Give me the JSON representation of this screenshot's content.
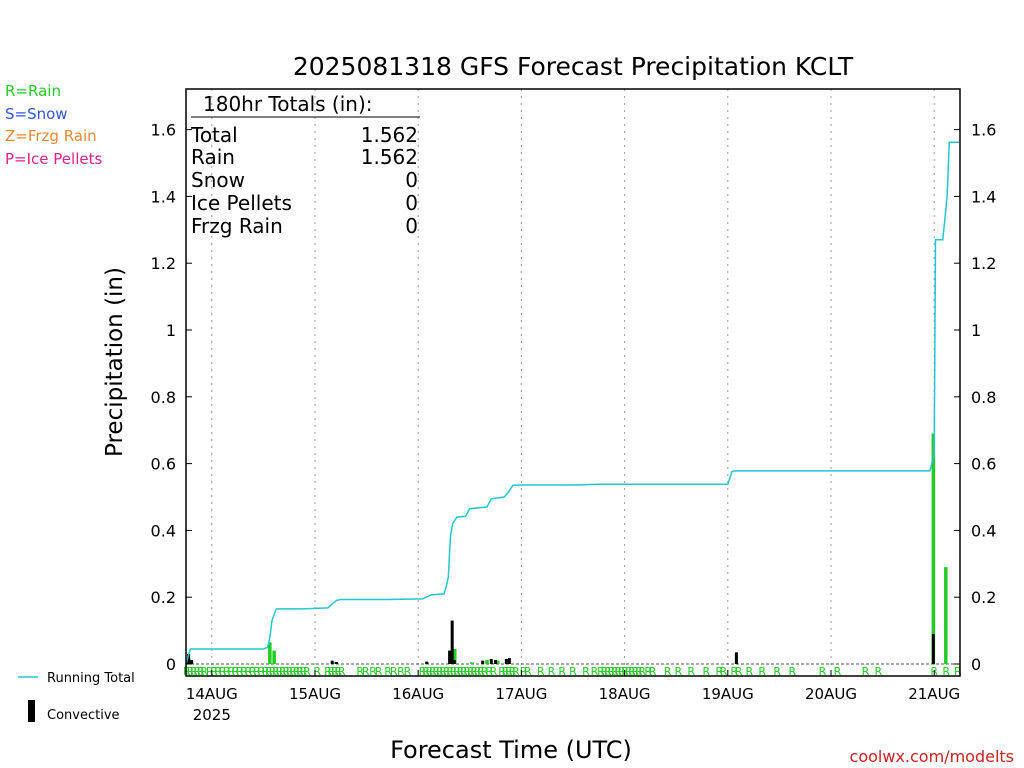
{
  "colors": {
    "rain": "#22cc22",
    "snow": "#3355dd",
    "frzg_rain": "#ee8833",
    "ice_pellets": "#dd2288",
    "running_total": "#22c8d0",
    "convective": "#000000",
    "site_link": "#cc2222"
  },
  "legend_left": {
    "rain": "R=Rain",
    "snow": "S=Snow",
    "frzg_rain": "Z=Frzg Rain",
    "ice_pellets": "P=Ice Pellets"
  },
  "legend_bottom": {
    "running_total": "Running Total",
    "convective": "Convective"
  },
  "site_link": "coolwx.com/modelts",
  "totals": {
    "header": "180hr Totals (in):",
    "rows": [
      {
        "label": "Total",
        "value": "1.562"
      },
      {
        "label": "Rain",
        "value": "1.562"
      },
      {
        "label": "Snow",
        "value": "0"
      },
      {
        "label": "Ice Pellets",
        "value": "0"
      },
      {
        "label": "Frzg Rain",
        "value": "0"
      }
    ]
  },
  "chart_data": {
    "type": "line",
    "title": "2025081318 GFS Forecast Precipitation KCLT",
    "xlabel": "Forecast Time (UTC)",
    "ylabel": "Precipitation (in)",
    "x_unit": "forecast hour",
    "xlim": [
      0,
      180
    ],
    "ylim": [
      0,
      1.7
    ],
    "yticks": [
      0,
      0.2,
      0.4,
      0.6,
      0.8,
      1,
      1.2,
      1.4,
      1.6
    ],
    "ytick_labels": [
      "0",
      "0.2",
      "0.4",
      "0.6",
      "0.8",
      "1",
      "1.2",
      "1.4",
      "1.6"
    ],
    "xticks": [
      {
        "hour": 6,
        "label": "14AUG"
      },
      {
        "hour": 30,
        "label": "15AUG"
      },
      {
        "hour": 54,
        "label": "16AUG"
      },
      {
        "hour": 78,
        "label": "17AUG"
      },
      {
        "hour": 102,
        "label": "18AUG"
      },
      {
        "hour": 126,
        "label": "19AUG"
      },
      {
        "hour": 150,
        "label": "20AUG"
      },
      {
        "hour": 174,
        "label": "21AUG"
      }
    ],
    "year_label": "2025",
    "grid": "vertical dotted",
    "series": [
      {
        "name": "Running Total",
        "points": [
          [
            0,
            0
          ],
          [
            1,
            0.045
          ],
          [
            18,
            0.045
          ],
          [
            19,
            0.05
          ],
          [
            19.5,
            0.08
          ],
          [
            20,
            0.13
          ],
          [
            21,
            0.165
          ],
          [
            27,
            0.165
          ],
          [
            33,
            0.168
          ],
          [
            34,
            0.18
          ],
          [
            35,
            0.19
          ],
          [
            36,
            0.193
          ],
          [
            47,
            0.193
          ],
          [
            55,
            0.195
          ],
          [
            57,
            0.207
          ],
          [
            60,
            0.21
          ],
          [
            60.5,
            0.23
          ],
          [
            61,
            0.26
          ],
          [
            61.5,
            0.38
          ],
          [
            62,
            0.42
          ],
          [
            63,
            0.44
          ],
          [
            65,
            0.442
          ],
          [
            66,
            0.465
          ],
          [
            70,
            0.47
          ],
          [
            71,
            0.495
          ],
          [
            74,
            0.5
          ],
          [
            75,
            0.515
          ],
          [
            76,
            0.535
          ],
          [
            78,
            0.536
          ],
          [
            90,
            0.536
          ],
          [
            96,
            0.538
          ],
          [
            126,
            0.538
          ],
          [
            127,
            0.577
          ],
          [
            128,
            0.578
          ],
          [
            173,
            0.578
          ],
          [
            174,
            0.63
          ],
          [
            174.3,
            1.27
          ],
          [
            176,
            1.27
          ],
          [
            177,
            1.4
          ],
          [
            177.5,
            1.562
          ],
          [
            180,
            1.562
          ]
        ]
      }
    ],
    "bars_rain": [
      {
        "hour": 0.6,
        "value": 0.02
      },
      {
        "hour": 1.2,
        "value": 0.008
      },
      {
        "hour": 19.5,
        "value": 0.065
      },
      {
        "hour": 20.5,
        "value": 0.04
      },
      {
        "hour": 34.5,
        "value": 0.005
      },
      {
        "hour": 56,
        "value": 0.005
      },
      {
        "hour": 61.5,
        "value": 0.04
      },
      {
        "hour": 62.5,
        "value": 0.045
      },
      {
        "hour": 66.5,
        "value": 0.005
      },
      {
        "hour": 70,
        "value": 0.012
      },
      {
        "hour": 72.5,
        "value": 0.01
      },
      {
        "hour": 173.8,
        "value": 0.69
      },
      {
        "hour": 176.7,
        "value": 0.29
      }
    ],
    "bars_convective": [
      {
        "hour": 0.6,
        "value": 0.03
      },
      {
        "hour": 1.3,
        "value": 0.012
      },
      {
        "hour": 34,
        "value": 0.01
      },
      {
        "hour": 35,
        "value": 0.006
      },
      {
        "hour": 56,
        "value": 0.007
      },
      {
        "hour": 61.3,
        "value": 0.04
      },
      {
        "hour": 61.9,
        "value": 0.13
      },
      {
        "hour": 62.4,
        "value": 0.012
      },
      {
        "hour": 69,
        "value": 0.01
      },
      {
        "hour": 71,
        "value": 0.015
      },
      {
        "hour": 72,
        "value": 0.012
      },
      {
        "hour": 74.5,
        "value": 0.015
      },
      {
        "hour": 75.2,
        "value": 0.018
      },
      {
        "hour": 128,
        "value": 0.035
      },
      {
        "hour": 173.8,
        "value": 0.09
      }
    ],
    "ptype_marker": "R",
    "ptype_hours": [
      0.2,
      1,
      1.8,
      2.6,
      3.4,
      4.2,
      5.5,
      6.5,
      7.5,
      8.5,
      9.5,
      10.5,
      11.5,
      12.5,
      13.5,
      14.5,
      15.5,
      16.5,
      17.5,
      18.5,
      19.3,
      20.1,
      20.9,
      21.7,
      22.5,
      23.3,
      24.1,
      24.9,
      25.7,
      26.5,
      27.3,
      28.1,
      30.5,
      33,
      33.8,
      34.6,
      35.4,
      36.2,
      40.5,
      41.8,
      43.5,
      44.8,
      47,
      48.3,
      50,
      51.5,
      55,
      55.8,
      56.6,
      57.4,
      58.2,
      59,
      59.8,
      60.6,
      61.4,
      62.2,
      63,
      63.8,
      64.6,
      65.4,
      66.2,
      67,
      67.8,
      68.6,
      69.4,
      70.5,
      71.5,
      73.5,
      74.3,
      75.1,
      75.9,
      76.7,
      78.5,
      79.5,
      82.5,
      85,
      87.5,
      90,
      93,
      95,
      96.5,
      97.3,
      98.1,
      98.9,
      99.7,
      100.5,
      101.3,
      102.1,
      102.9,
      103.7,
      104.5,
      105.3,
      106.1,
      107.5,
      108.5,
      112,
      114.5,
      117.5,
      121,
      124,
      125,
      127.5,
      128.5,
      131,
      134,
      137.5,
      141,
      148,
      151.5,
      158,
      161,
      174,
      176.8,
      179.5
    ]
  }
}
